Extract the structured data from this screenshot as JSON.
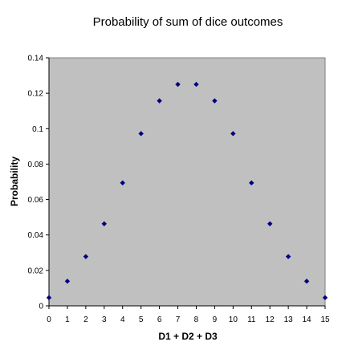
{
  "chart_data": {
    "type": "scatter",
    "title": "Probability of sum of dice outcomes",
    "xlabel": "D1 + D2 + D3",
    "ylabel": "Probability",
    "xlim": [
      0,
      15
    ],
    "ylim": [
      0,
      0.14
    ],
    "x_ticks": [
      "0",
      "1",
      "2",
      "3",
      "4",
      "5",
      "6",
      "7",
      "8",
      "9",
      "10",
      "11",
      "12",
      "13",
      "14",
      "15"
    ],
    "y_ticks": [
      "0",
      "0.02",
      "0.04",
      "0.06",
      "0.08",
      "0.1",
      "0.12",
      "0.14"
    ],
    "grid": false,
    "legend": "none",
    "series": [
      {
        "x": [
          0,
          1,
          2,
          3,
          4,
          5,
          6,
          7,
          8,
          9,
          10,
          11,
          12,
          13,
          14,
          15
        ],
        "y": [
          0.0046,
          0.0139,
          0.0278,
          0.0463,
          0.0694,
          0.0972,
          0.1157,
          0.125,
          0.125,
          0.1157,
          0.0972,
          0.0694,
          0.0463,
          0.0278,
          0.0139,
          0.0046
        ]
      }
    ],
    "colors": {
      "plot_background": "#c0c0c0",
      "marker": "#000080"
    }
  }
}
